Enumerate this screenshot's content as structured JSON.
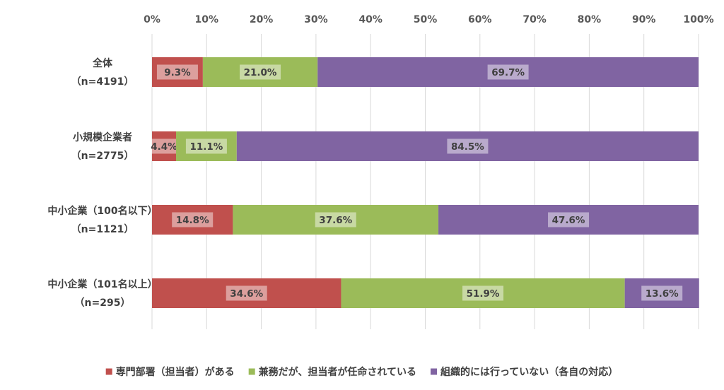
{
  "chart_data": {
    "type": "bar",
    "orientation": "horizontal",
    "stacked": "percent",
    "categories": [
      [
        "全体",
        "（n=4191）"
      ],
      [
        "小規模企業者",
        "（n=2775）"
      ],
      [
        "中小企業（100名以下）",
        "（n=1121）"
      ],
      [
        "中小企業（101名以上）",
        "（n=295）"
      ]
    ],
    "series": [
      {
        "name": "専門部署（担当者）がある",
        "color": "#C0504D",
        "values": [
          9.3,
          4.4,
          14.8,
          34.6
        ]
      },
      {
        "name": "兼務だが、担当者が任命されている",
        "color": "#9BBB59",
        "values": [
          21.0,
          11.1,
          37.6,
          51.9
        ]
      },
      {
        "name": "組織的には行っていない（各自の対応）",
        "color": "#8064A2",
        "values": [
          69.7,
          84.5,
          47.6,
          13.6
        ]
      }
    ],
    "value_labels": [
      [
        "9.3%",
        "21.0%",
        "69.7%"
      ],
      [
        "4.4%",
        "11.1%",
        "84.5%"
      ],
      [
        "14.8%",
        "37.6%",
        "47.6%"
      ],
      [
        "34.6%",
        "51.9%",
        "13.6%"
      ]
    ],
    "xaxis": {
      "position": "top",
      "ticks": [
        "0%",
        "10%",
        "20%",
        "30%",
        "40%",
        "50%",
        "60%",
        "70%",
        "80%",
        "90%",
        "100%"
      ],
      "range": [
        0,
        100
      ]
    },
    "grid": true,
    "legend": "bottom"
  }
}
